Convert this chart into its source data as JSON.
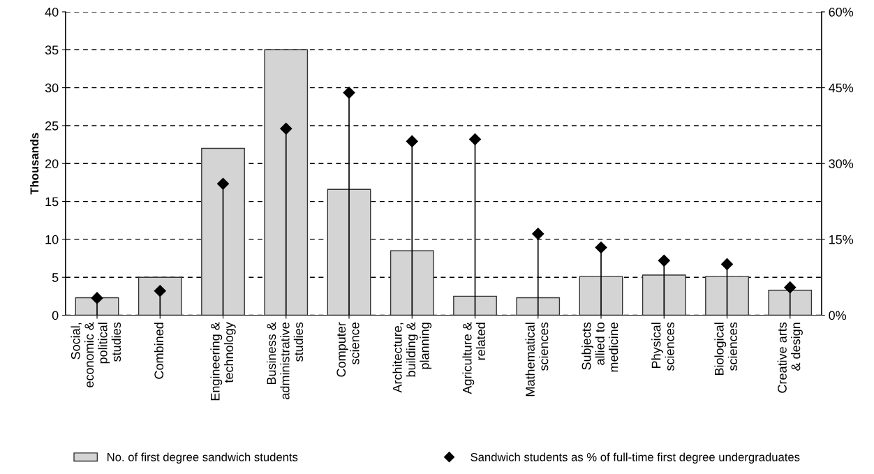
{
  "chart_data": {
    "type": "bar",
    "ylabel": "Thousands",
    "categories": [
      "Social, economic & political studies",
      "Combined",
      "Engineering & technology",
      "Business & administrative studies",
      "Computer science",
      "Architecture, building & planning",
      "Agriculture & related",
      "Mathematical sciences",
      "Subjects allied to medicine",
      "Physical sciences",
      "Biological sciences",
      "Creative arts & design"
    ],
    "series": [
      {
        "name": "No. of first degree sandwich students",
        "color": "#d4d4d4",
        "values": [
          2.3,
          5.0,
          22.0,
          35.0,
          16.6,
          8.5,
          2.5,
          2.3,
          5.1,
          5.3,
          5.1,
          3.3
        ]
      },
      {
        "name": "Sandwich students as % of full-time first degree undergraduates",
        "type": "lollipop",
        "axis": "y2",
        "color": "#000000",
        "marker": "diamond",
        "values": [
          3.4,
          4.8,
          26.0,
          36.9,
          44.0,
          34.4,
          34.8,
          16.1,
          13.4,
          10.8,
          10.1,
          5.5
        ]
      }
    ],
    "ylim": [
      0,
      40
    ],
    "yticks": [
      0,
      5,
      10,
      15,
      20,
      25,
      30,
      35,
      40
    ],
    "y2lim": [
      0,
      60
    ],
    "y2ticks": [
      {
        "value": 0,
        "label": "0%"
      },
      {
        "value": 15,
        "label": "15%"
      },
      {
        "value": 30,
        "label": "30%"
      },
      {
        "value": 45,
        "label": "45%"
      },
      {
        "value": 60,
        "label": "60%"
      }
    ],
    "grid": "y",
    "legend": "bottom"
  }
}
